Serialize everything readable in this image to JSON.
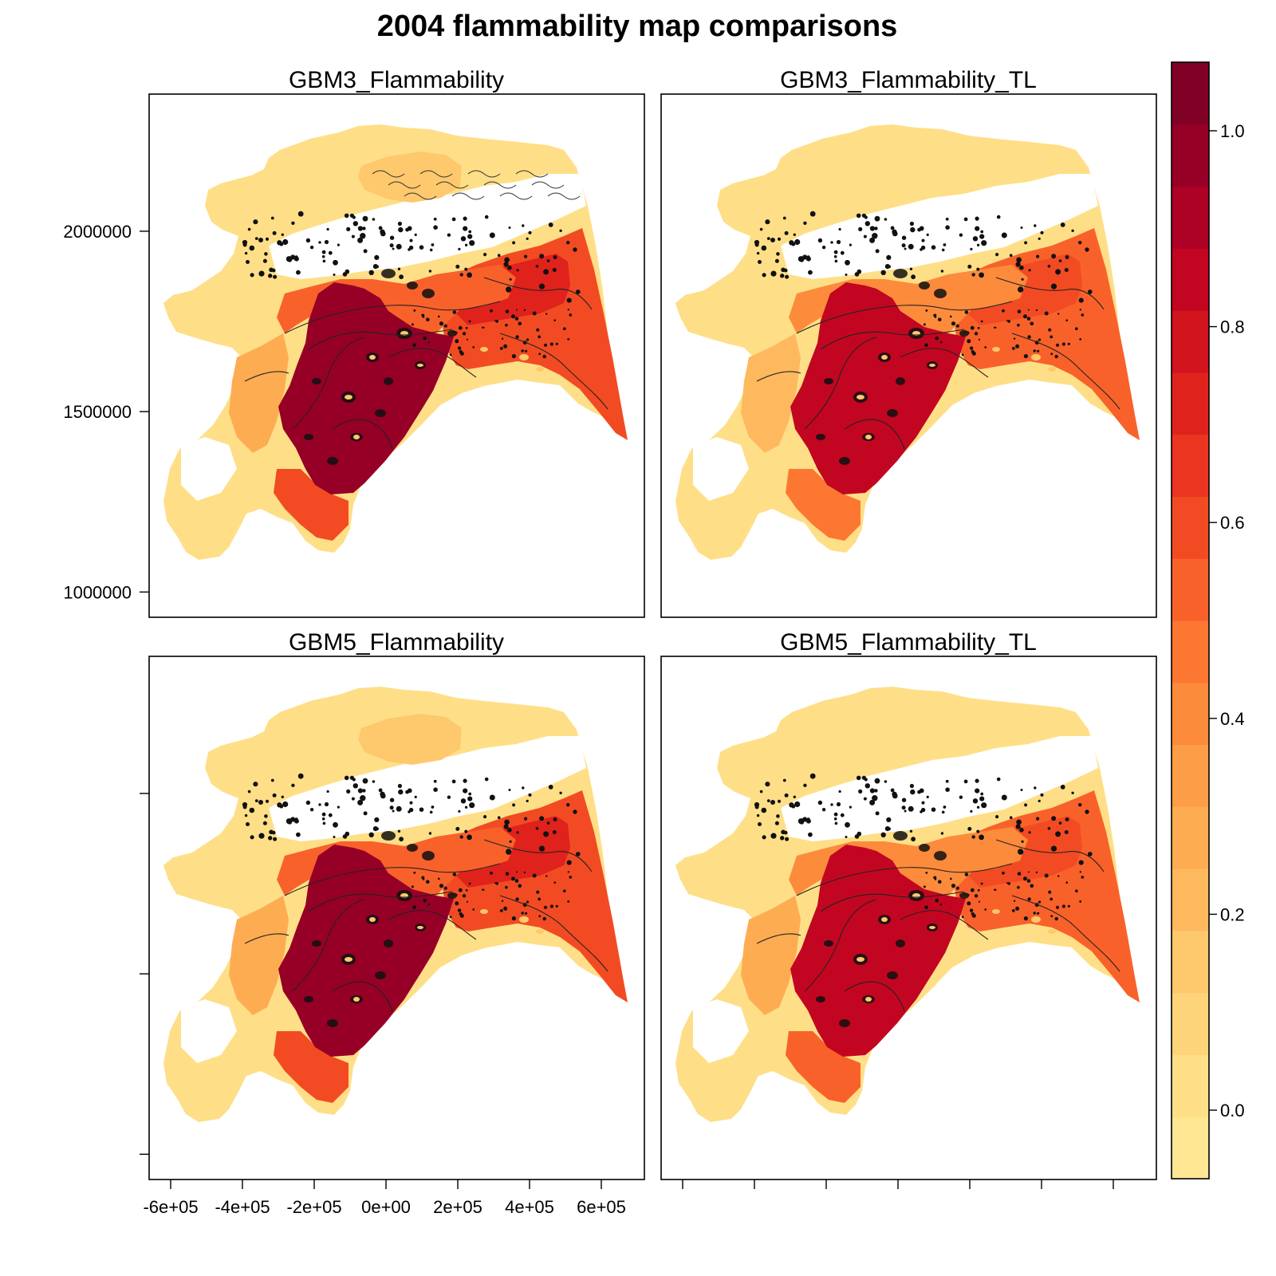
{
  "figure": {
    "title": "2004 flammability map comparisons",
    "panels": [
      {
        "title": "GBM3_Flammability",
        "intensity": 1.0,
        "north_blob": true,
        "fragmented": true
      },
      {
        "title": "GBM3_Flammability_TL",
        "intensity": 0.82,
        "north_blob": false,
        "fragmented": false
      },
      {
        "title": "GBM5_Flammability",
        "intensity": 1.0,
        "north_blob": true,
        "fragmented": false
      },
      {
        "title": "GBM5_Flammability_TL",
        "intensity": 0.85,
        "north_blob": false,
        "fragmented": false
      }
    ],
    "y_axis": {
      "ticks": [
        1000000,
        1500000,
        2000000
      ],
      "tick_labels": [
        "1000000",
        "1500000",
        "2000000"
      ],
      "range": [
        930000,
        2380000
      ]
    },
    "x_axis": {
      "ticks": [
        -600000,
        -400000,
        -200000,
        0,
        200000,
        400000,
        600000
      ],
      "tick_labels": [
        "-6e+05",
        "-4e+05",
        "-2e+05",
        "0e+00",
        "2e+05",
        "4e+05",
        "6e+05"
      ],
      "range": [
        -660000,
        720000
      ]
    },
    "colorbar": {
      "ticks": [
        0.0,
        0.2,
        0.4,
        0.6,
        0.8,
        1.0
      ],
      "tick_labels": [
        "0.0",
        "0.2",
        "0.4",
        "0.6",
        "0.8",
        "1.0"
      ],
      "range": [
        -0.07,
        1.07
      ],
      "colors": [
        "#FFE793",
        "#FEDF87",
        "#FED47B",
        "#FEC86C",
        "#FEB95E",
        "#FEAC52",
        "#FD9D48",
        "#FD8B3C",
        "#FC7732",
        "#F9612B",
        "#F24B23",
        "#EA3520",
        "#DF221C",
        "#D1141E",
        "#C20621",
        "#AD0125",
        "#960026",
        "#800026"
      ]
    }
  }
}
